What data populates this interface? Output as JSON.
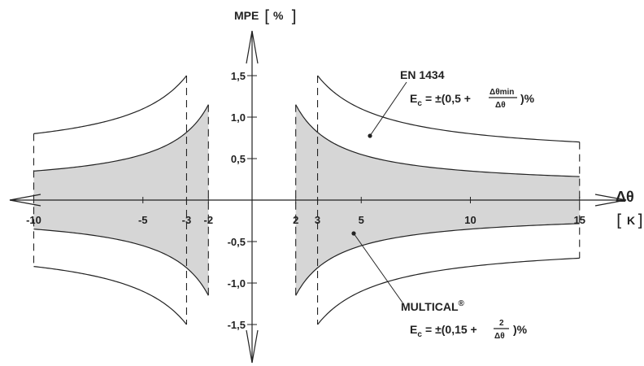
{
  "chart_data": {
    "type": "area",
    "xlim": [
      -12.2,
      17.2
    ],
    "ylim": [
      -1.88,
      1.88
    ],
    "x_ticks": [
      "-10",
      "-5",
      "-3",
      "-2",
      "2",
      "3",
      "5",
      "10",
      "15"
    ],
    "x_tick_values": [
      -10,
      -5,
      -3,
      -2,
      2,
      3,
      5,
      10,
      15
    ],
    "y_ticks": [
      "1,5",
      "1,0",
      "0,5",
      "-0,5",
      "-1,0",
      "-1,5"
    ],
    "y_tick_values": [
      1.5,
      1.0,
      0.5,
      -0.5,
      -1.0,
      -1.5
    ],
    "y_axis_label": "MPE",
    "y_axis_unit": "%",
    "x_axis_label": "Δθ",
    "x_axis_unit": "K",
    "series": [
      {
        "name": "EN 1434",
        "formula_prefix": "E",
        "formula_subscript": "c",
        "formula_body": "= ±(0,5 +",
        "formula_numerator": "Δθmin",
        "formula_denominator": "Δθ",
        "formula_suffix": ")%",
        "a": 0.5,
        "b": 3,
        "x_start": 3,
        "x_end": 15,
        "x_start_neg": -10,
        "x_end_neg": -3,
        "boundary_min": 1.5
      },
      {
        "name": "MULTICAL",
        "name_mark": "®",
        "formula_prefix": "E",
        "formula_subscript": "c",
        "formula_body": "= ±(0,15 +",
        "formula_numerator": "2",
        "formula_denominator": "Δθ",
        "formula_suffix": ")%",
        "a": 0.15,
        "b": 2,
        "x_start": 2,
        "x_end": 15,
        "x_start_neg": -10,
        "x_end_neg": -2,
        "boundary_min": 1.15
      }
    ],
    "colors": {
      "shade": "#d6d6d6",
      "line": "#222222"
    }
  }
}
